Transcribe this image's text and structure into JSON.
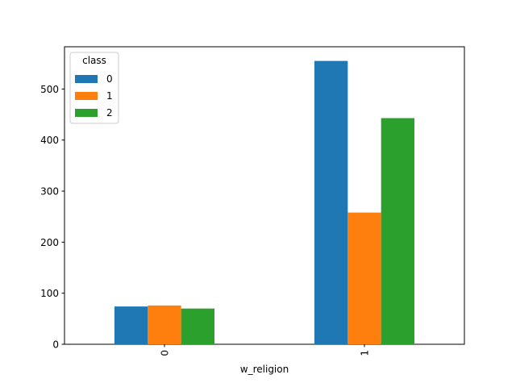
{
  "chart_data": {
    "type": "bar",
    "title": "",
    "xlabel": "w_religion",
    "ylabel": "",
    "categories": [
      "0",
      "1"
    ],
    "series": [
      {
        "name": "0",
        "values": [
          74,
          555
        ],
        "color": "#1f77b4"
      },
      {
        "name": "1",
        "values": [
          76,
          258
        ],
        "color": "#ff7f0e"
      },
      {
        "name": "2",
        "values": [
          70,
          443
        ],
        "color": "#2ca02c"
      }
    ],
    "ylim": [
      0,
      582.75
    ],
    "yticks": [
      0,
      100,
      200,
      300,
      400,
      500
    ],
    "legend": {
      "title": "class",
      "position": "top-left"
    },
    "grid": false
  }
}
